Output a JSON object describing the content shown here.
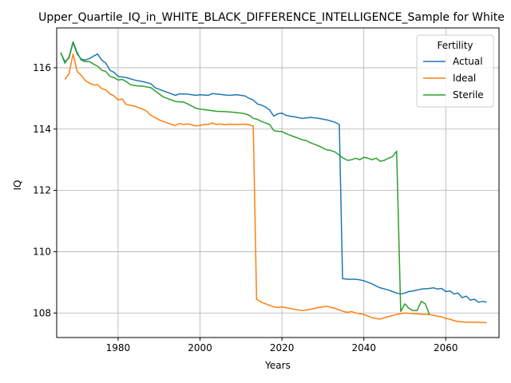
{
  "chart_data": {
    "type": "line",
    "title": "Upper_Quartile_IQ_in_WHITE_BLACK_DIFFERENCE_INTELLIGENCE_Sample for White",
    "xlabel": "Years",
    "ylabel": "IQ",
    "xlim": [
      1965,
      2073
    ],
    "ylim": [
      107.2,
      117.3
    ],
    "x_ticks": [
      1980,
      2000,
      2020,
      2040,
      2060
    ],
    "y_ticks": [
      108,
      110,
      112,
      114,
      116
    ],
    "grid": true,
    "legend": {
      "title": "Fertility",
      "position": "top-right"
    },
    "series": [
      {
        "name": "Actual",
        "color": "#1f77b4",
        "points": [
          [
            1966,
            116.48
          ],
          [
            1967,
            116.2
          ],
          [
            1968,
            116.32
          ],
          [
            1969,
            116.82
          ],
          [
            1970,
            116.45
          ],
          [
            1971,
            116.28
          ],
          [
            1972,
            116.25
          ],
          [
            1973,
            116.3
          ],
          [
            1974,
            116.38
          ],
          [
            1975,
            116.45
          ],
          [
            1976,
            116.25
          ],
          [
            1977,
            116.15
          ],
          [
            1978,
            115.92
          ],
          [
            1979,
            115.85
          ],
          [
            1980,
            115.72
          ],
          [
            1982,
            115.68
          ],
          [
            1984,
            115.6
          ],
          [
            1986,
            115.55
          ],
          [
            1988,
            115.48
          ],
          [
            1989,
            115.35
          ],
          [
            1990,
            115.3
          ],
          [
            1992,
            115.2
          ],
          [
            1994,
            115.1
          ],
          [
            1995,
            115.15
          ],
          [
            1997,
            115.14
          ],
          [
            1999,
            115.1
          ],
          [
            2000,
            115.12
          ],
          [
            2002,
            115.1
          ],
          [
            2003,
            115.16
          ],
          [
            2005,
            115.13
          ],
          [
            2007,
            115.1
          ],
          [
            2009,
            115.12
          ],
          [
            2011,
            115.08
          ],
          [
            2012,
            115.0
          ],
          [
            2013,
            114.95
          ],
          [
            2014,
            114.82
          ],
          [
            2015,
            114.78
          ],
          [
            2016,
            114.72
          ],
          [
            2017,
            114.62
          ],
          [
            2018,
            114.42
          ],
          [
            2019,
            114.5
          ],
          [
            2020,
            114.52
          ],
          [
            2021,
            114.45
          ],
          [
            2022,
            114.42
          ],
          [
            2023,
            114.4
          ],
          [
            2025,
            114.35
          ],
          [
            2027,
            114.38
          ],
          [
            2029,
            114.35
          ],
          [
            2031,
            114.3
          ],
          [
            2033,
            114.22
          ],
          [
            2034,
            114.15
          ],
          [
            2034.8,
            109.12
          ],
          [
            2036,
            109.1
          ],
          [
            2038,
            109.1
          ],
          [
            2039,
            109.08
          ],
          [
            2040,
            109.05
          ],
          [
            2041,
            109.0
          ],
          [
            2042,
            108.95
          ],
          [
            2043,
            108.88
          ],
          [
            2044,
            108.82
          ],
          [
            2046,
            108.75
          ],
          [
            2047,
            108.7
          ],
          [
            2048,
            108.65
          ],
          [
            2049,
            108.62
          ],
          [
            2050,
            108.65
          ],
          [
            2051,
            108.7
          ],
          [
            2052,
            108.72
          ],
          [
            2053,
            108.75
          ],
          [
            2054,
            108.78
          ],
          [
            2056,
            108.8
          ],
          [
            2057,
            108.82
          ],
          [
            2058,
            108.78
          ],
          [
            2059,
            108.8
          ],
          [
            2060,
            108.7
          ],
          [
            2061,
            108.72
          ],
          [
            2062,
            108.62
          ],
          [
            2063,
            108.65
          ],
          [
            2064,
            108.5
          ],
          [
            2065,
            108.55
          ],
          [
            2066,
            108.42
          ],
          [
            2067,
            108.45
          ],
          [
            2068,
            108.35
          ],
          [
            2069,
            108.38
          ],
          [
            2070,
            108.35
          ]
        ]
      },
      {
        "name": "Ideal",
        "color": "#ff7f0e",
        "points": [
          [
            1967,
            115.62
          ],
          [
            1968,
            115.8
          ],
          [
            1969,
            116.45
          ],
          [
            1970,
            115.88
          ],
          [
            1971,
            115.75
          ],
          [
            1972,
            115.58
          ],
          [
            1973,
            115.5
          ],
          [
            1974,
            115.44
          ],
          [
            1975,
            115.45
          ],
          [
            1976,
            115.32
          ],
          [
            1977,
            115.28
          ],
          [
            1978,
            115.15
          ],
          [
            1979,
            115.08
          ],
          [
            1980,
            114.95
          ],
          [
            1981,
            114.98
          ],
          [
            1982,
            114.8
          ],
          [
            1984,
            114.75
          ],
          [
            1986,
            114.65
          ],
          [
            1987,
            114.58
          ],
          [
            1988,
            114.45
          ],
          [
            1989,
            114.38
          ],
          [
            1990,
            114.3
          ],
          [
            1991,
            114.25
          ],
          [
            1992,
            114.2
          ],
          [
            1993,
            114.15
          ],
          [
            1994,
            114.12
          ],
          [
            1995,
            114.18
          ],
          [
            1996,
            114.15
          ],
          [
            1997,
            114.17
          ],
          [
            1998,
            114.14
          ],
          [
            1999,
            114.1
          ],
          [
            2000,
            114.12
          ],
          [
            2001,
            114.15
          ],
          [
            2002,
            114.15
          ],
          [
            2003,
            114.2
          ],
          [
            2004,
            114.15
          ],
          [
            2005,
            114.17
          ],
          [
            2006,
            114.14
          ],
          [
            2007,
            114.16
          ],
          [
            2009,
            114.15
          ],
          [
            2011,
            114.16
          ],
          [
            2012,
            114.14
          ],
          [
            2013,
            114.1
          ],
          [
            2013.8,
            108.45
          ],
          [
            2015,
            108.35
          ],
          [
            2016,
            108.3
          ],
          [
            2017,
            108.25
          ],
          [
            2018,
            108.2
          ],
          [
            2019,
            108.18
          ],
          [
            2020,
            108.2
          ],
          [
            2021,
            108.17
          ],
          [
            2022,
            108.15
          ],
          [
            2023,
            108.12
          ],
          [
            2024,
            108.1
          ],
          [
            2025,
            108.08
          ],
          [
            2026,
            108.1
          ],
          [
            2027,
            108.12
          ],
          [
            2028,
            108.15
          ],
          [
            2029,
            108.18
          ],
          [
            2030,
            108.2
          ],
          [
            2031,
            108.22
          ],
          [
            2032,
            108.18
          ],
          [
            2033,
            108.15
          ],
          [
            2034,
            108.1
          ],
          [
            2035,
            108.05
          ],
          [
            2036,
            108.02
          ],
          [
            2037,
            108.05
          ],
          [
            2038,
            108.0
          ],
          [
            2039,
            107.98
          ],
          [
            2040,
            107.95
          ],
          [
            2041,
            107.9
          ],
          [
            2042,
            107.85
          ],
          [
            2043,
            107.82
          ],
          [
            2044,
            107.8
          ],
          [
            2045,
            107.85
          ],
          [
            2046,
            107.88
          ],
          [
            2047,
            107.92
          ],
          [
            2048,
            107.95
          ],
          [
            2049,
            107.98
          ],
          [
            2050,
            108.0
          ],
          [
            2052,
            107.98
          ],
          [
            2054,
            107.96
          ],
          [
            2056,
            107.95
          ],
          [
            2057,
            107.92
          ],
          [
            2058,
            107.9
          ],
          [
            2059,
            107.88
          ],
          [
            2060,
            107.82
          ],
          [
            2061,
            107.8
          ],
          [
            2062,
            107.75
          ],
          [
            2063,
            107.72
          ],
          [
            2065,
            107.7
          ],
          [
            2067,
            107.7
          ],
          [
            2069,
            107.69
          ],
          [
            2070,
            107.68
          ]
        ]
      },
      {
        "name": "Sterile",
        "color": "#2ca02c",
        "points": [
          [
            1966,
            116.5
          ],
          [
            1967,
            116.15
          ],
          [
            1968,
            116.35
          ],
          [
            1969,
            116.85
          ],
          [
            1970,
            116.5
          ],
          [
            1971,
            116.25
          ],
          [
            1972,
            116.2
          ],
          [
            1973,
            116.2
          ],
          [
            1974,
            116.12
          ],
          [
            1975,
            116.05
          ],
          [
            1976,
            115.92
          ],
          [
            1977,
            115.88
          ],
          [
            1978,
            115.72
          ],
          [
            1979,
            115.68
          ],
          [
            1980,
            115.6
          ],
          [
            1981,
            115.62
          ],
          [
            1982,
            115.55
          ],
          [
            1983,
            115.45
          ],
          [
            1984,
            115.42
          ],
          [
            1986,
            115.4
          ],
          [
            1988,
            115.35
          ],
          [
            1989,
            115.25
          ],
          [
            1990,
            115.15
          ],
          [
            1991,
            115.05
          ],
          [
            1992,
            115.0
          ],
          [
            1993,
            114.95
          ],
          [
            1994,
            114.9
          ],
          [
            1996,
            114.88
          ],
          [
            1997,
            114.82
          ],
          [
            1998,
            114.75
          ],
          [
            1999,
            114.68
          ],
          [
            2000,
            114.65
          ],
          [
            2002,
            114.62
          ],
          [
            2003,
            114.6
          ],
          [
            2004,
            114.58
          ],
          [
            2006,
            114.57
          ],
          [
            2008,
            114.55
          ],
          [
            2010,
            114.52
          ],
          [
            2011,
            114.5
          ],
          [
            2012,
            114.45
          ],
          [
            2013,
            114.35
          ],
          [
            2014,
            114.32
          ],
          [
            2015,
            114.25
          ],
          [
            2016,
            114.2
          ],
          [
            2017,
            114.15
          ],
          [
            2018,
            113.95
          ],
          [
            2019,
            113.93
          ],
          [
            2020,
            113.92
          ],
          [
            2021,
            113.85
          ],
          [
            2022,
            113.8
          ],
          [
            2023,
            113.75
          ],
          [
            2024,
            113.7
          ],
          [
            2025,
            113.65
          ],
          [
            2026,
            113.62
          ],
          [
            2027,
            113.55
          ],
          [
            2028,
            113.5
          ],
          [
            2029,
            113.45
          ],
          [
            2030,
            113.38
          ],
          [
            2031,
            113.32
          ],
          [
            2032,
            113.3
          ],
          [
            2033,
            113.25
          ],
          [
            2034,
            113.15
          ],
          [
            2035,
            113.05
          ],
          [
            2036,
            112.98
          ],
          [
            2037,
            113.0
          ],
          [
            2038,
            113.05
          ],
          [
            2039,
            113.0
          ],
          [
            2040,
            113.08
          ],
          [
            2041,
            113.05
          ],
          [
            2042,
            113.0
          ],
          [
            2043,
            113.05
          ],
          [
            2044,
            112.95
          ],
          [
            2045,
            112.98
          ],
          [
            2046,
            113.05
          ],
          [
            2047,
            113.1
          ],
          [
            2048,
            113.28
          ],
          [
            2049,
            108.05
          ],
          [
            2050,
            108.3
          ],
          [
            2051,
            108.15
          ],
          [
            2052,
            108.08
          ],
          [
            2053,
            108.08
          ],
          [
            2054,
            108.38
          ],
          [
            2055,
            108.3
          ],
          [
            2056,
            107.95
          ]
        ]
      }
    ]
  }
}
